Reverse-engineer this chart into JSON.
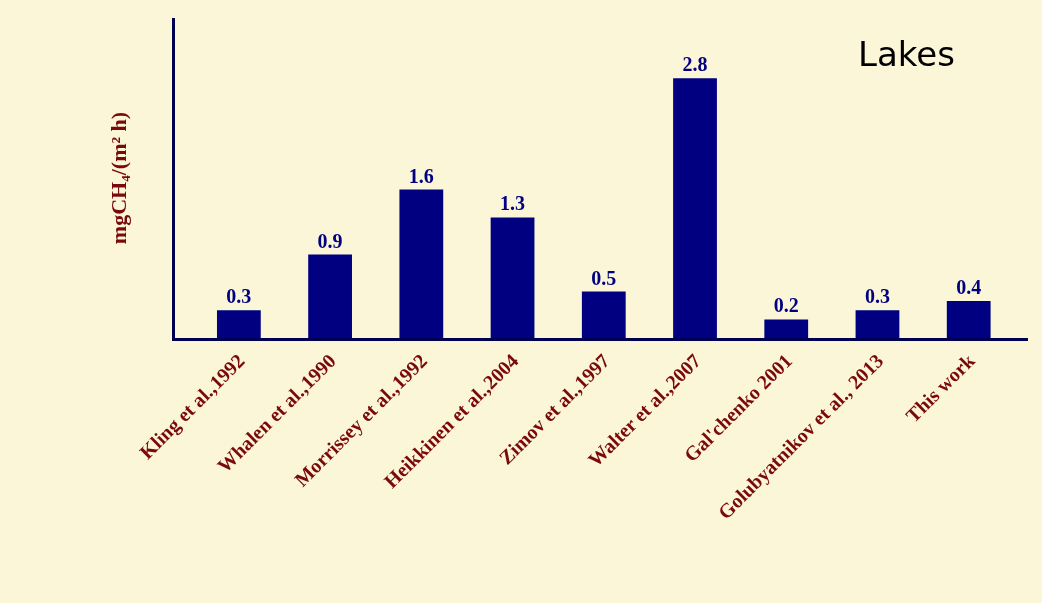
{
  "chart_data": {
    "type": "bar",
    "title": "Lakes",
    "ylabel": "mgCH₄/(m² h)",
    "categories": [
      "Kling et al.,1992",
      "Whalen et al.,1990",
      "Morrissey et al.,1992",
      "Heikkinen et al.,2004",
      "Zimov et al.,1997",
      "Walter et al.,2007",
      "Gal'chenko 2001",
      "Golubyatnikov et al., 2013",
      "This work"
    ],
    "values": [
      0.3,
      0.9,
      1.6,
      1.3,
      0.5,
      2.8,
      0.2,
      0.3,
      0.4
    ],
    "color": "#000080",
    "data_labels": true,
    "ylim": [
      0,
      3.45
    ],
    "tick_labels": "x",
    "grid": false,
    "legend": false
  }
}
